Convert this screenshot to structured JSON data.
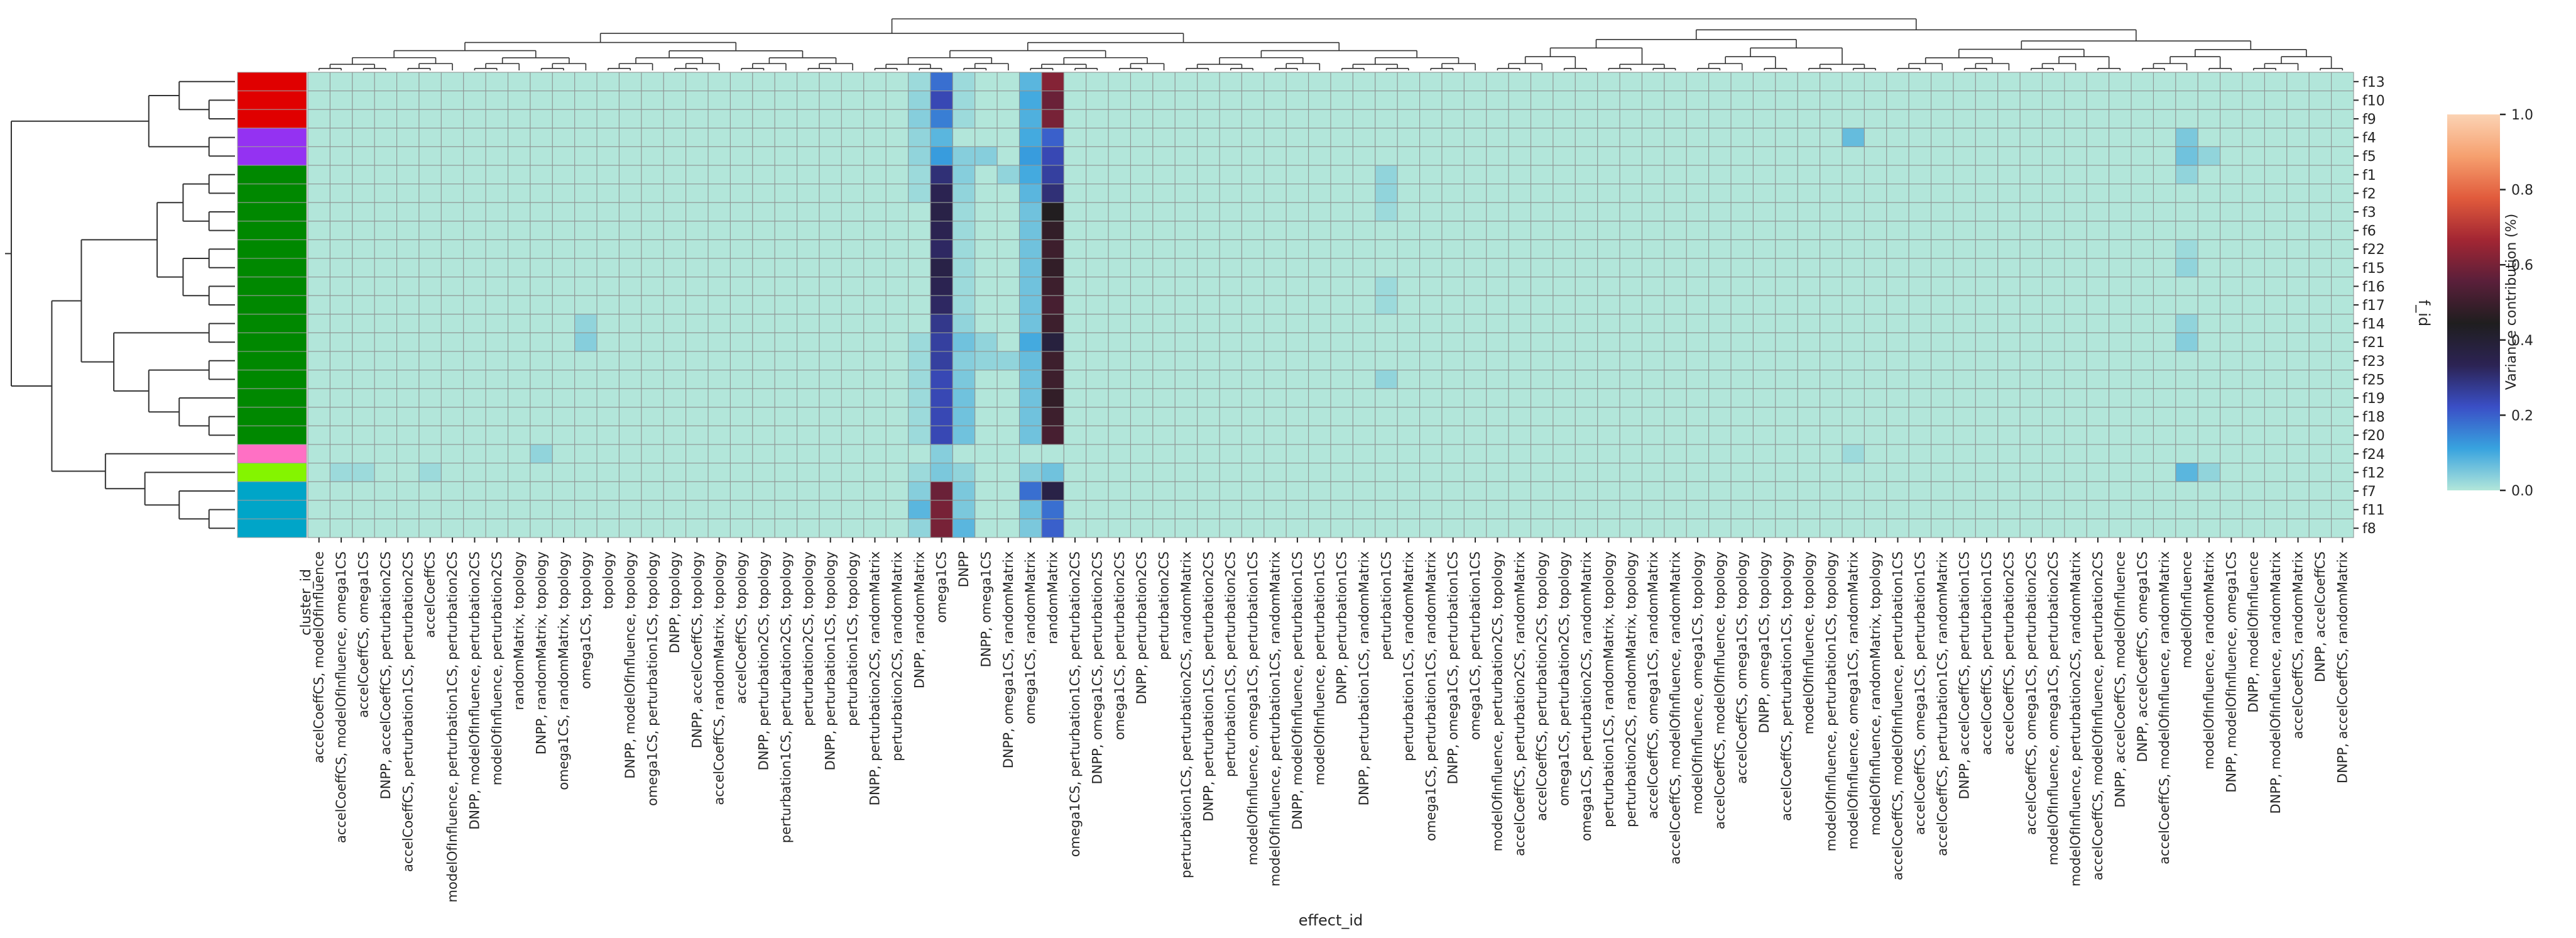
{
  "chart_data": {
    "type": "heatmap",
    "title": "",
    "xlabel": "effect_id",
    "ylabel": "f_id",
    "colorbar_label": "Variance contribution (%)",
    "colorbar_ticks": [
      "0.0",
      "0.2",
      "0.4",
      "0.6",
      "0.8",
      "1.0"
    ],
    "colorbar_range": [
      0.0,
      1.0
    ],
    "colorbar_stops": [
      "#b2e6da",
      "#38a3df",
      "#3a4fc6",
      "#2c2354",
      "#1f1e1f",
      "#5a1f3a",
      "#a32633",
      "#e15b3c",
      "#f6a06f",
      "#fbd3b4"
    ],
    "cluster_label": "cluster_id",
    "grid": true,
    "legend": "right",
    "dendrograms": [
      "top",
      "left"
    ],
    "cluster_colors": [
      "#e00000",
      "#9432f2",
      "#008800",
      "#ff70c4",
      "#84f500",
      "#00a5c8"
    ],
    "rows": [
      "f13",
      "f10",
      "f9",
      "f4",
      "f5",
      "f1",
      "f2",
      "f3",
      "f6",
      "f22",
      "f15",
      "f16",
      "f17",
      "f14",
      "f21",
      "f23",
      "f25",
      "f19",
      "f18",
      "f20",
      "f24",
      "f12",
      "f7",
      "f11",
      "f8"
    ],
    "row_clusters": [
      0,
      0,
      0,
      1,
      1,
      2,
      2,
      2,
      2,
      2,
      2,
      2,
      2,
      2,
      2,
      2,
      2,
      2,
      2,
      2,
      3,
      4,
      5,
      5,
      5
    ],
    "columns": [
      "accelCoeffCS, modelOfInfluence",
      "accelCoeffCS, modelOfInfluence, omega1CS",
      "accelCoeffCS, omega1CS",
      "DNPP, accelCoeffCS, perturbation2CS",
      "accelCoeffCS, perturbation1CS, perturbation2CS",
      "accelCoeffCS",
      "modelOfInfluence, perturbation1CS, perturbation2CS",
      "DNPP, modelOfInfluence, perturbation2CS",
      "modelOfInfluence, perturbation2CS",
      "randomMatrix, topology",
      "DNPP, randomMatrix, topology",
      "omega1CS, randomMatrix, topology",
      "omega1CS, topology",
      "topology",
      "DNPP, modelOfInfluence, topology",
      "omega1CS, perturbation1CS, topology",
      "DNPP, topology",
      "DNPP, accelCoeffCS, topology",
      "accelCoeffCS, randomMatrix, topology",
      "accelCoeffCS, topology",
      "DNPP, perturbation2CS, topology",
      "perturbation1CS, perturbation2CS, topology",
      "perturbation2CS, topology",
      "DNPP, perturbation1CS, topology",
      "perturbation1CS, topology",
      "DNPP, perturbation2CS, randomMatrix",
      "perturbation2CS, randomMatrix",
      "DNPP, randomMatrix",
      "omega1CS",
      "DNPP",
      "DNPP, omega1CS",
      "DNPP, omega1CS, randomMatrix",
      "omega1CS, randomMatrix",
      "randomMatrix",
      "omega1CS, perturbation1CS, perturbation2CS",
      "DNPP, omega1CS, perturbation2CS",
      "omega1CS, perturbation2CS",
      "DNPP, perturbation2CS",
      "perturbation2CS",
      "perturbation1CS, perturbation2CS, randomMatrix",
      "DNPP, perturbation1CS, perturbation2CS",
      "perturbation1CS, perturbation2CS",
      "modelOfInfluence, omega1CS, perturbation1CS",
      "modelOfInfluence, perturbation1CS, randomMatrix",
      "DNPP, modelOfInfluence, perturbation1CS",
      "modelOfInfluence, perturbation1CS",
      "DNPP, perturbation1CS",
      "DNPP, perturbation1CS, randomMatrix",
      "perturbation1CS",
      "perturbation1CS, randomMatrix",
      "omega1CS, perturbation1CS, randomMatrix",
      "DNPP, omega1CS, perturbation1CS",
      "omega1CS, perturbation1CS",
      "modelOfInfluence, perturbation2CS, topology",
      "accelCoeffCS, perturbation2CS, randomMatrix",
      "accelCoeffCS, perturbation2CS, topology",
      "omega1CS, perturbation2CS, topology",
      "omega1CS, perturbation2CS, randomMatrix",
      "perturbation1CS, randomMatrix, topology",
      "perturbation2CS, randomMatrix, topology",
      "accelCoeffCS, omega1CS, randomMatrix",
      "accelCoeffCS, modelOfInfluence, randomMatrix",
      "modelOfInfluence, omega1CS, topology",
      "accelCoeffCS, modelOfInfluence, topology",
      "accelCoeffCS, omega1CS, topology",
      "DNPP, omega1CS, topology",
      "accelCoeffCS, perturbation1CS, topology",
      "modelOfInfluence, topology",
      "modelOfInfluence, perturbation1CS, topology",
      "modelOfInfluence, omega1CS, randomMatrix",
      "modelOfInfluence, randomMatrix, topology",
      "accelCoeffCS, modelOfInfluence, perturbation1CS",
      "accelCoeffCS, omega1CS, perturbation1CS",
      "accelCoeffCS, perturbation1CS, randomMatrix",
      "DNPP, accelCoeffCS, perturbation1CS",
      "accelCoeffCS, perturbation1CS",
      "accelCoeffCS, perturbation2CS",
      "accelCoeffCS, omega1CS, perturbation2CS",
      "modelOfInfluence, omega1CS, perturbation2CS",
      "modelOfInfluence, perturbation2CS, randomMatrix",
      "accelCoeffCS, modelOfInfluence, perturbation2CS",
      "DNPP, accelCoeffCS, modelOfInfluence",
      "DNPP, accelCoeffCS, omega1CS",
      "accelCoeffCS, modelOfInfluence, randomMatrix",
      "modelOfInfluence",
      "modelOfInfluence, randomMatrix",
      "DNPP, modelOfInfluence, omega1CS",
      "DNPP, modelOfInfluence",
      "DNPP, modelOfInfluence, randomMatrix",
      "accelCoeffCS, randomMatrix",
      "DNPP, accelCoeffCS",
      "DNPP, accelCoeffCS, randomMatrix"
    ],
    "default_value": 0.0,
    "values_sparse": [
      {
        "row": "f13",
        "column": "DNPP, randomMatrix",
        "value": 0.02
      },
      {
        "row": "f13",
        "column": "omega1CS",
        "value": 0.18
      },
      {
        "row": "f13",
        "column": "DNPP",
        "value": 0.02
      },
      {
        "row": "f13",
        "column": "omega1CS, randomMatrix",
        "value": 0.08
      },
      {
        "row": "f13",
        "column": "randomMatrix",
        "value": 0.62
      },
      {
        "row": "f10",
        "column": "DNPP, randomMatrix",
        "value": 0.03
      },
      {
        "row": "f10",
        "column": "omega1CS",
        "value": 0.24
      },
      {
        "row": "f10",
        "column": "DNPP",
        "value": 0.02
      },
      {
        "row": "f10",
        "column": "omega1CS, randomMatrix",
        "value": 0.1
      },
      {
        "row": "f10",
        "column": "randomMatrix",
        "value": 0.58
      },
      {
        "row": "f9",
        "column": "DNPP, randomMatrix",
        "value": 0.04
      },
      {
        "row": "f9",
        "column": "omega1CS",
        "value": 0.16
      },
      {
        "row": "f9",
        "column": "DNPP",
        "value": 0.02
      },
      {
        "row": "f9",
        "column": "omega1CS, randomMatrix",
        "value": 0.09
      },
      {
        "row": "f9",
        "column": "randomMatrix",
        "value": 0.6
      },
      {
        "row": "f4",
        "column": "DNPP, randomMatrix",
        "value": 0.03
      },
      {
        "row": "f4",
        "column": "omega1CS",
        "value": 0.08
      },
      {
        "row": "f4",
        "column": "omega1CS, randomMatrix",
        "value": 0.1
      },
      {
        "row": "f4",
        "column": "randomMatrix",
        "value": 0.2
      },
      {
        "row": "f4",
        "column": "modelOfInfluence, omega1CS, randomMatrix",
        "value": 0.07
      },
      {
        "row": "f4",
        "column": "modelOfInfluence",
        "value": 0.05
      },
      {
        "row": "f5",
        "column": "DNPP, randomMatrix",
        "value": 0.03
      },
      {
        "row": "f5",
        "column": "omega1CS",
        "value": 0.12
      },
      {
        "row": "f5",
        "column": "DNPP",
        "value": 0.04
      },
      {
        "row": "f5",
        "column": "DNPP, omega1CS",
        "value": 0.04
      },
      {
        "row": "f5",
        "column": "omega1CS, randomMatrix",
        "value": 0.12
      },
      {
        "row": "f5",
        "column": "randomMatrix",
        "value": 0.24
      },
      {
        "row": "f5",
        "column": "modelOfInfluence",
        "value": 0.06
      },
      {
        "row": "f5",
        "column": "modelOfInfluence, randomMatrix",
        "value": 0.03
      },
      {
        "row": "f1",
        "column": "DNPP, randomMatrix",
        "value": 0.02
      },
      {
        "row": "f1",
        "column": "omega1CS",
        "value": 0.3
      },
      {
        "row": "f1",
        "column": "DNPP",
        "value": 0.04
      },
      {
        "row": "f1",
        "column": "DNPP, omega1CS, randomMatrix",
        "value": 0.03
      },
      {
        "row": "f1",
        "column": "omega1CS, randomMatrix",
        "value": 0.1
      },
      {
        "row": "f1",
        "column": "randomMatrix",
        "value": 0.26
      },
      {
        "row": "f1",
        "column": "perturbation1CS",
        "value": 0.03
      },
      {
        "row": "f1",
        "column": "modelOfInfluence",
        "value": 0.03
      },
      {
        "row": "f2",
        "column": "DNPP, randomMatrix",
        "value": 0.02
      },
      {
        "row": "f2",
        "column": "omega1CS",
        "value": 0.34
      },
      {
        "row": "f2",
        "column": "DNPP",
        "value": 0.03
      },
      {
        "row": "f2",
        "column": "omega1CS, randomMatrix",
        "value": 0.08
      },
      {
        "row": "f2",
        "column": "randomMatrix",
        "value": 0.3
      },
      {
        "row": "f2",
        "column": "perturbation1CS",
        "value": 0.03
      },
      {
        "row": "f3",
        "column": "omega1CS",
        "value": 0.36
      },
      {
        "row": "f3",
        "column": "DNPP",
        "value": 0.02
      },
      {
        "row": "f3",
        "column": "omega1CS, randomMatrix",
        "value": 0.06
      },
      {
        "row": "f3",
        "column": "randomMatrix",
        "value": 0.45
      },
      {
        "row": "f3",
        "column": "perturbation1CS",
        "value": 0.02
      },
      {
        "row": "f6",
        "column": "omega1CS",
        "value": 0.34
      },
      {
        "row": "f6",
        "column": "DNPP",
        "value": 0.02
      },
      {
        "row": "f6",
        "column": "omega1CS, randomMatrix",
        "value": 0.06
      },
      {
        "row": "f6",
        "column": "randomMatrix",
        "value": 0.48
      },
      {
        "row": "f22",
        "column": "omega1CS",
        "value": 0.32
      },
      {
        "row": "f22",
        "column": "DNPP",
        "value": 0.02
      },
      {
        "row": "f22",
        "column": "omega1CS, randomMatrix",
        "value": 0.06
      },
      {
        "row": "f22",
        "column": "randomMatrix",
        "value": 0.5
      },
      {
        "row": "f22",
        "column": "modelOfInfluence",
        "value": 0.02
      },
      {
        "row": "f15",
        "column": "omega1CS",
        "value": 0.36
      },
      {
        "row": "f15",
        "column": "DNPP",
        "value": 0.02
      },
      {
        "row": "f15",
        "column": "omega1CS, randomMatrix",
        "value": 0.06
      },
      {
        "row": "f15",
        "column": "randomMatrix",
        "value": 0.48
      },
      {
        "row": "f15",
        "column": "modelOfInfluence",
        "value": 0.03
      },
      {
        "row": "f16",
        "column": "omega1CS",
        "value": 0.34
      },
      {
        "row": "f16",
        "column": "DNPP",
        "value": 0.02
      },
      {
        "row": "f16",
        "column": "omega1CS, randomMatrix",
        "value": 0.06
      },
      {
        "row": "f16",
        "column": "randomMatrix",
        "value": 0.5
      },
      {
        "row": "f16",
        "column": "perturbation1CS",
        "value": 0.02
      },
      {
        "row": "f17",
        "column": "omega1CS",
        "value": 0.32
      },
      {
        "row": "f17",
        "column": "DNPP",
        "value": 0.02
      },
      {
        "row": "f17",
        "column": "omega1CS, randomMatrix",
        "value": 0.06
      },
      {
        "row": "f17",
        "column": "randomMatrix",
        "value": 0.52
      },
      {
        "row": "f17",
        "column": "perturbation1CS",
        "value": 0.02
      },
      {
        "row": "f14",
        "column": "omega1CS",
        "value": 0.28
      },
      {
        "row": "f14",
        "column": "DNPP",
        "value": 0.03
      },
      {
        "row": "f14",
        "column": "omega1CS, randomMatrix",
        "value": 0.06
      },
      {
        "row": "f14",
        "column": "randomMatrix",
        "value": 0.5
      },
      {
        "row": "f14",
        "column": "omega1CS, topology",
        "value": 0.03
      },
      {
        "row": "f14",
        "column": "modelOfInfluence",
        "value": 0.03
      },
      {
        "row": "f21",
        "column": "DNPP, randomMatrix",
        "value": 0.02
      },
      {
        "row": "f21",
        "column": "omega1CS",
        "value": 0.26
      },
      {
        "row": "f21",
        "column": "DNPP",
        "value": 0.06
      },
      {
        "row": "f21",
        "column": "DNPP, omega1CS",
        "value": 0.03
      },
      {
        "row": "f21",
        "column": "omega1CS, randomMatrix",
        "value": 0.1
      },
      {
        "row": "f21",
        "column": "randomMatrix",
        "value": 0.38
      },
      {
        "row": "f21",
        "column": "omega1CS, topology",
        "value": 0.04
      },
      {
        "row": "f21",
        "column": "modelOfInfluence",
        "value": 0.04
      },
      {
        "row": "f23",
        "column": "DNPP, randomMatrix",
        "value": 0.02
      },
      {
        "row": "f23",
        "column": "omega1CS",
        "value": 0.26
      },
      {
        "row": "f23",
        "column": "DNPP",
        "value": 0.04
      },
      {
        "row": "f23",
        "column": "DNPP, omega1CS",
        "value": 0.03
      },
      {
        "row": "f23",
        "column": "DNPP, omega1CS, randomMatrix",
        "value": 0.03
      },
      {
        "row": "f23",
        "column": "omega1CS, randomMatrix",
        "value": 0.07
      },
      {
        "row": "f23",
        "column": "randomMatrix",
        "value": 0.5
      },
      {
        "row": "f25",
        "column": "DNPP, randomMatrix",
        "value": 0.02
      },
      {
        "row": "f25",
        "column": "omega1CS",
        "value": 0.24
      },
      {
        "row": "f25",
        "column": "DNPP",
        "value": 0.05
      },
      {
        "row": "f25",
        "column": "omega1CS, randomMatrix",
        "value": 0.06
      },
      {
        "row": "f25",
        "column": "randomMatrix",
        "value": 0.5
      },
      {
        "row": "f25",
        "column": "perturbation1CS",
        "value": 0.03
      },
      {
        "row": "f19",
        "column": "DNPP, randomMatrix",
        "value": 0.02
      },
      {
        "row": "f19",
        "column": "omega1CS",
        "value": 0.24
      },
      {
        "row": "f19",
        "column": "DNPP",
        "value": 0.06
      },
      {
        "row": "f19",
        "column": "omega1CS, randomMatrix",
        "value": 0.06
      },
      {
        "row": "f19",
        "column": "randomMatrix",
        "value": 0.48
      },
      {
        "row": "f18",
        "column": "DNPP, randomMatrix",
        "value": 0.02
      },
      {
        "row": "f18",
        "column": "omega1CS",
        "value": 0.24
      },
      {
        "row": "f18",
        "column": "DNPP",
        "value": 0.06
      },
      {
        "row": "f18",
        "column": "omega1CS, randomMatrix",
        "value": 0.06
      },
      {
        "row": "f18",
        "column": "randomMatrix",
        "value": 0.5
      },
      {
        "row": "f20",
        "column": "DNPP, randomMatrix",
        "value": 0.02
      },
      {
        "row": "f20",
        "column": "omega1CS",
        "value": 0.24
      },
      {
        "row": "f20",
        "column": "DNPP",
        "value": 0.06
      },
      {
        "row": "f20",
        "column": "omega1CS, randomMatrix",
        "value": 0.06
      },
      {
        "row": "f20",
        "column": "randomMatrix",
        "value": 0.52
      },
      {
        "row": "f24",
        "column": "omega1CS",
        "value": 0.04
      },
      {
        "row": "f24",
        "column": "DNPP, randomMatrix, topology",
        "value": 0.03
      },
      {
        "row": "f24",
        "column": "modelOfInfluence, omega1CS, randomMatrix",
        "value": 0.02
      },
      {
        "row": "f12",
        "column": "DNPP, randomMatrix",
        "value": 0.02
      },
      {
        "row": "f12",
        "column": "omega1CS",
        "value": 0.05
      },
      {
        "row": "f12",
        "column": "DNPP",
        "value": 0.03
      },
      {
        "row": "f12",
        "column": "omega1CS, randomMatrix",
        "value": 0.04
      },
      {
        "row": "f12",
        "column": "randomMatrix",
        "value": 0.06
      },
      {
        "row": "f12",
        "column": "accelCoeffCS, modelOfInfluence, omega1CS",
        "value": 0.02
      },
      {
        "row": "f12",
        "column": "accelCoeffCS, omega1CS",
        "value": 0.02
      },
      {
        "row": "f12",
        "column": "accelCoeffCS",
        "value": 0.02
      },
      {
        "row": "f12",
        "column": "modelOfInfluence",
        "value": 0.08
      },
      {
        "row": "f12",
        "column": "modelOfInfluence, randomMatrix",
        "value": 0.03
      },
      {
        "row": "f7",
        "column": "DNPP, randomMatrix",
        "value": 0.04
      },
      {
        "row": "f7",
        "column": "omega1CS",
        "value": 0.58
      },
      {
        "row": "f7",
        "column": "DNPP",
        "value": 0.05
      },
      {
        "row": "f7",
        "column": "omega1CS, randomMatrix",
        "value": 0.18
      },
      {
        "row": "f7",
        "column": "randomMatrix",
        "value": 0.36
      },
      {
        "row": "f11",
        "column": "DNPP, randomMatrix",
        "value": 0.08
      },
      {
        "row": "f11",
        "column": "omega1CS",
        "value": 0.6
      },
      {
        "row": "f11",
        "column": "DNPP",
        "value": 0.05
      },
      {
        "row": "f11",
        "column": "omega1CS, randomMatrix",
        "value": 0.06
      },
      {
        "row": "f11",
        "column": "randomMatrix",
        "value": 0.18
      },
      {
        "row": "f8",
        "column": "DNPP, randomMatrix",
        "value": 0.03
      },
      {
        "row": "f8",
        "column": "omega1CS",
        "value": 0.6
      },
      {
        "row": "f8",
        "column": "DNPP",
        "value": 0.08
      },
      {
        "row": "f8",
        "column": "omega1CS, randomMatrix",
        "value": 0.05
      },
      {
        "row": "f8",
        "column": "randomMatrix",
        "value": 0.2
      }
    ]
  }
}
